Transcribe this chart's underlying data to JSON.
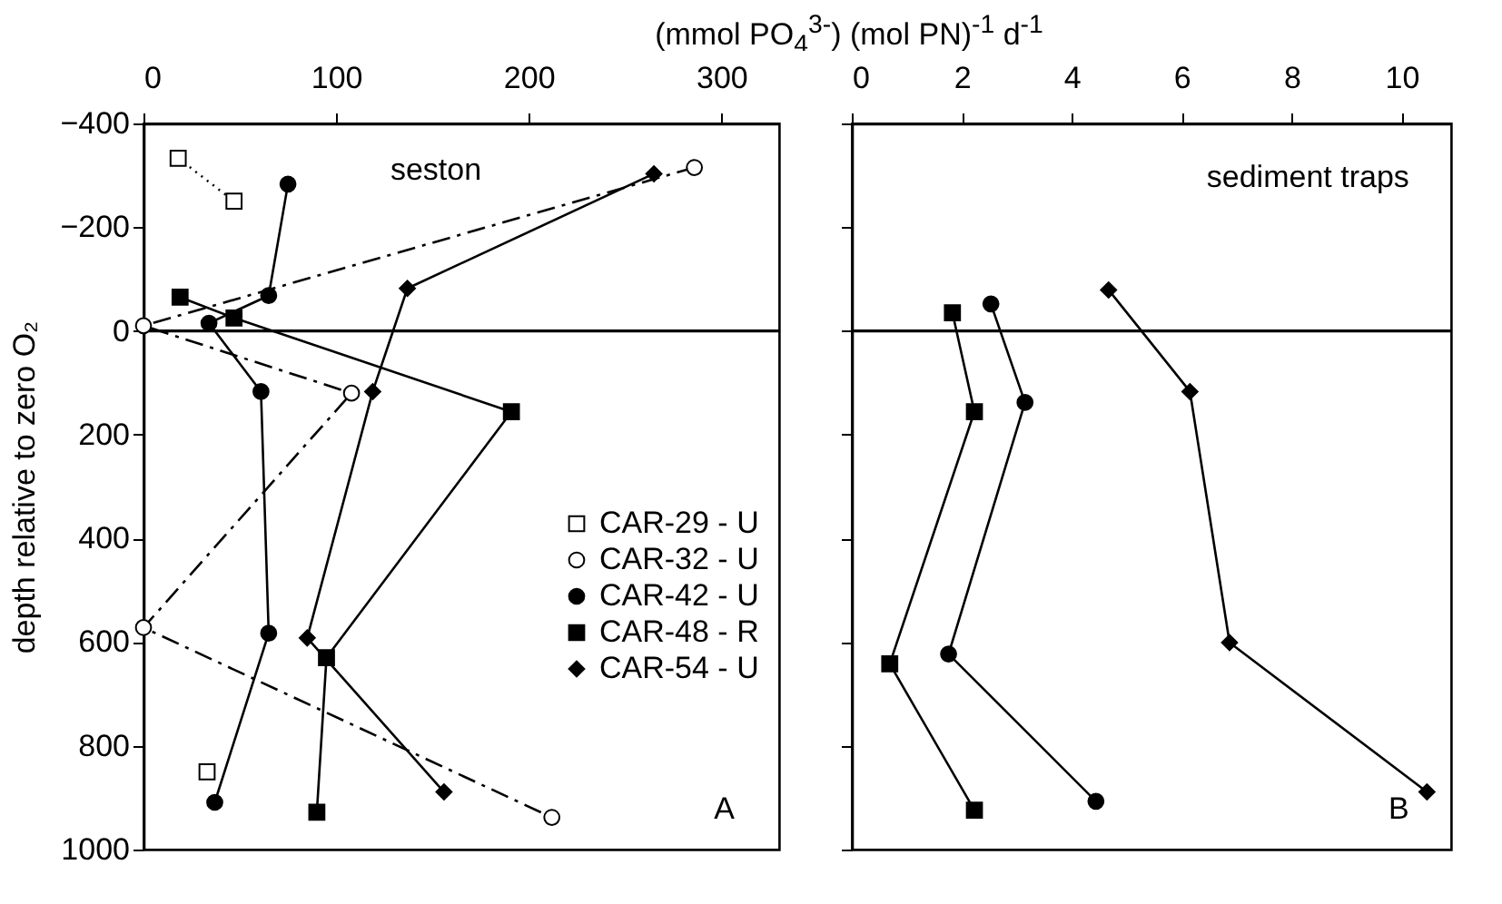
{
  "chart_data": [
    {
      "type": "line",
      "xlabel": "(mmol PO$_{4}$$^{3-}$) (mol PN)$^{-1}$ d$^{-1}$",
      "ylabel": "depth relative to zero O₂",
      "xlim": [
        0,
        330
      ],
      "xticks": [
        0,
        100,
        200,
        300
      ],
      "ylim": [
        1000,
        -400
      ],
      "yticks": [
        -400,
        -200,
        0,
        200,
        400,
        600,
        800,
        1000
      ],
      "legend": "right",
      "grid": false,
      "annotations": [
        "seston",
        "A"
      ],
      "ref_lines": [
        {
          "axis": "y",
          "value": 0,
          "color": "#000000"
        }
      ],
      "series": [
        {
          "name": "CAR-29 - U",
          "color": "#ffffff",
          "marker": "square",
          "line_style": "dotted",
          "x": [
            18,
            47,
            null,
            33
          ],
          "values": [
            -333,
            -250,
            null,
            850
          ]
        },
        {
          "name": "CAR-32 - U",
          "color": "#ffffff",
          "marker": "circle",
          "line_style": "dashed",
          "x": [
            286,
            0,
            108,
            0,
            212
          ],
          "values": [
            -315,
            -10,
            120,
            572,
            938
          ]
        },
        {
          "name": "CAR-42 - U",
          "color": "#000000",
          "marker": "circle",
          "line_style": "solid",
          "x": [
            75,
            65,
            34,
            61,
            65,
            37
          ],
          "values": [
            -283,
            -68,
            -15,
            117,
            583,
            909
          ]
        },
        {
          "name": "CAR-48 - R",
          "color": "#000000",
          "marker": "square",
          "line_style": "solid",
          "x": [
            19,
            47,
            191,
            95,
            90
          ],
          "values": [
            -65,
            -25,
            156,
            630,
            928
          ]
        },
        {
          "name": "CAR-54 - U",
          "color": "#000000",
          "marker": "diamond",
          "line_style": "solid",
          "x": [
            265,
            137,
            119,
            85,
            156
          ],
          "values": [
            -303,
            -82,
            117,
            592,
            889
          ]
        }
      ]
    },
    {
      "type": "line",
      "xlim": [
        0,
        10.9
      ],
      "xticks": [
        0,
        2,
        4,
        6,
        8,
        10
      ],
      "ylim": [
        1000,
        -400
      ],
      "yticks": [
        -400,
        -200,
        0,
        200,
        400,
        600,
        800,
        1000
      ],
      "tick_labels": "x",
      "grid": false,
      "annotations": [
        "sediment traps",
        "B"
      ],
      "ref_lines": [
        {
          "axis": "y",
          "value": 0,
          "color": "#000000"
        }
      ],
      "series": [
        {
          "color": "#000000",
          "marker": "square",
          "line_style": "solid",
          "x": [
            1.83,
            2.23,
            0.69,
            2.23
          ],
          "values": [
            -35,
            156,
            642,
            924
          ]
        },
        {
          "color": "#000000",
          "marker": "circle",
          "line_style": "solid",
          "x": [
            2.53,
            3.15,
            1.76,
            4.44
          ],
          "values": [
            -52,
            138,
            623,
            907
          ]
        },
        {
          "color": "#000000",
          "marker": "diamond",
          "line_style": "solid",
          "x": [
            4.67,
            6.15,
            6.87,
            10.46
          ],
          "values": [
            -79,
            117,
            601,
            889
          ]
        }
      ]
    }
  ]
}
